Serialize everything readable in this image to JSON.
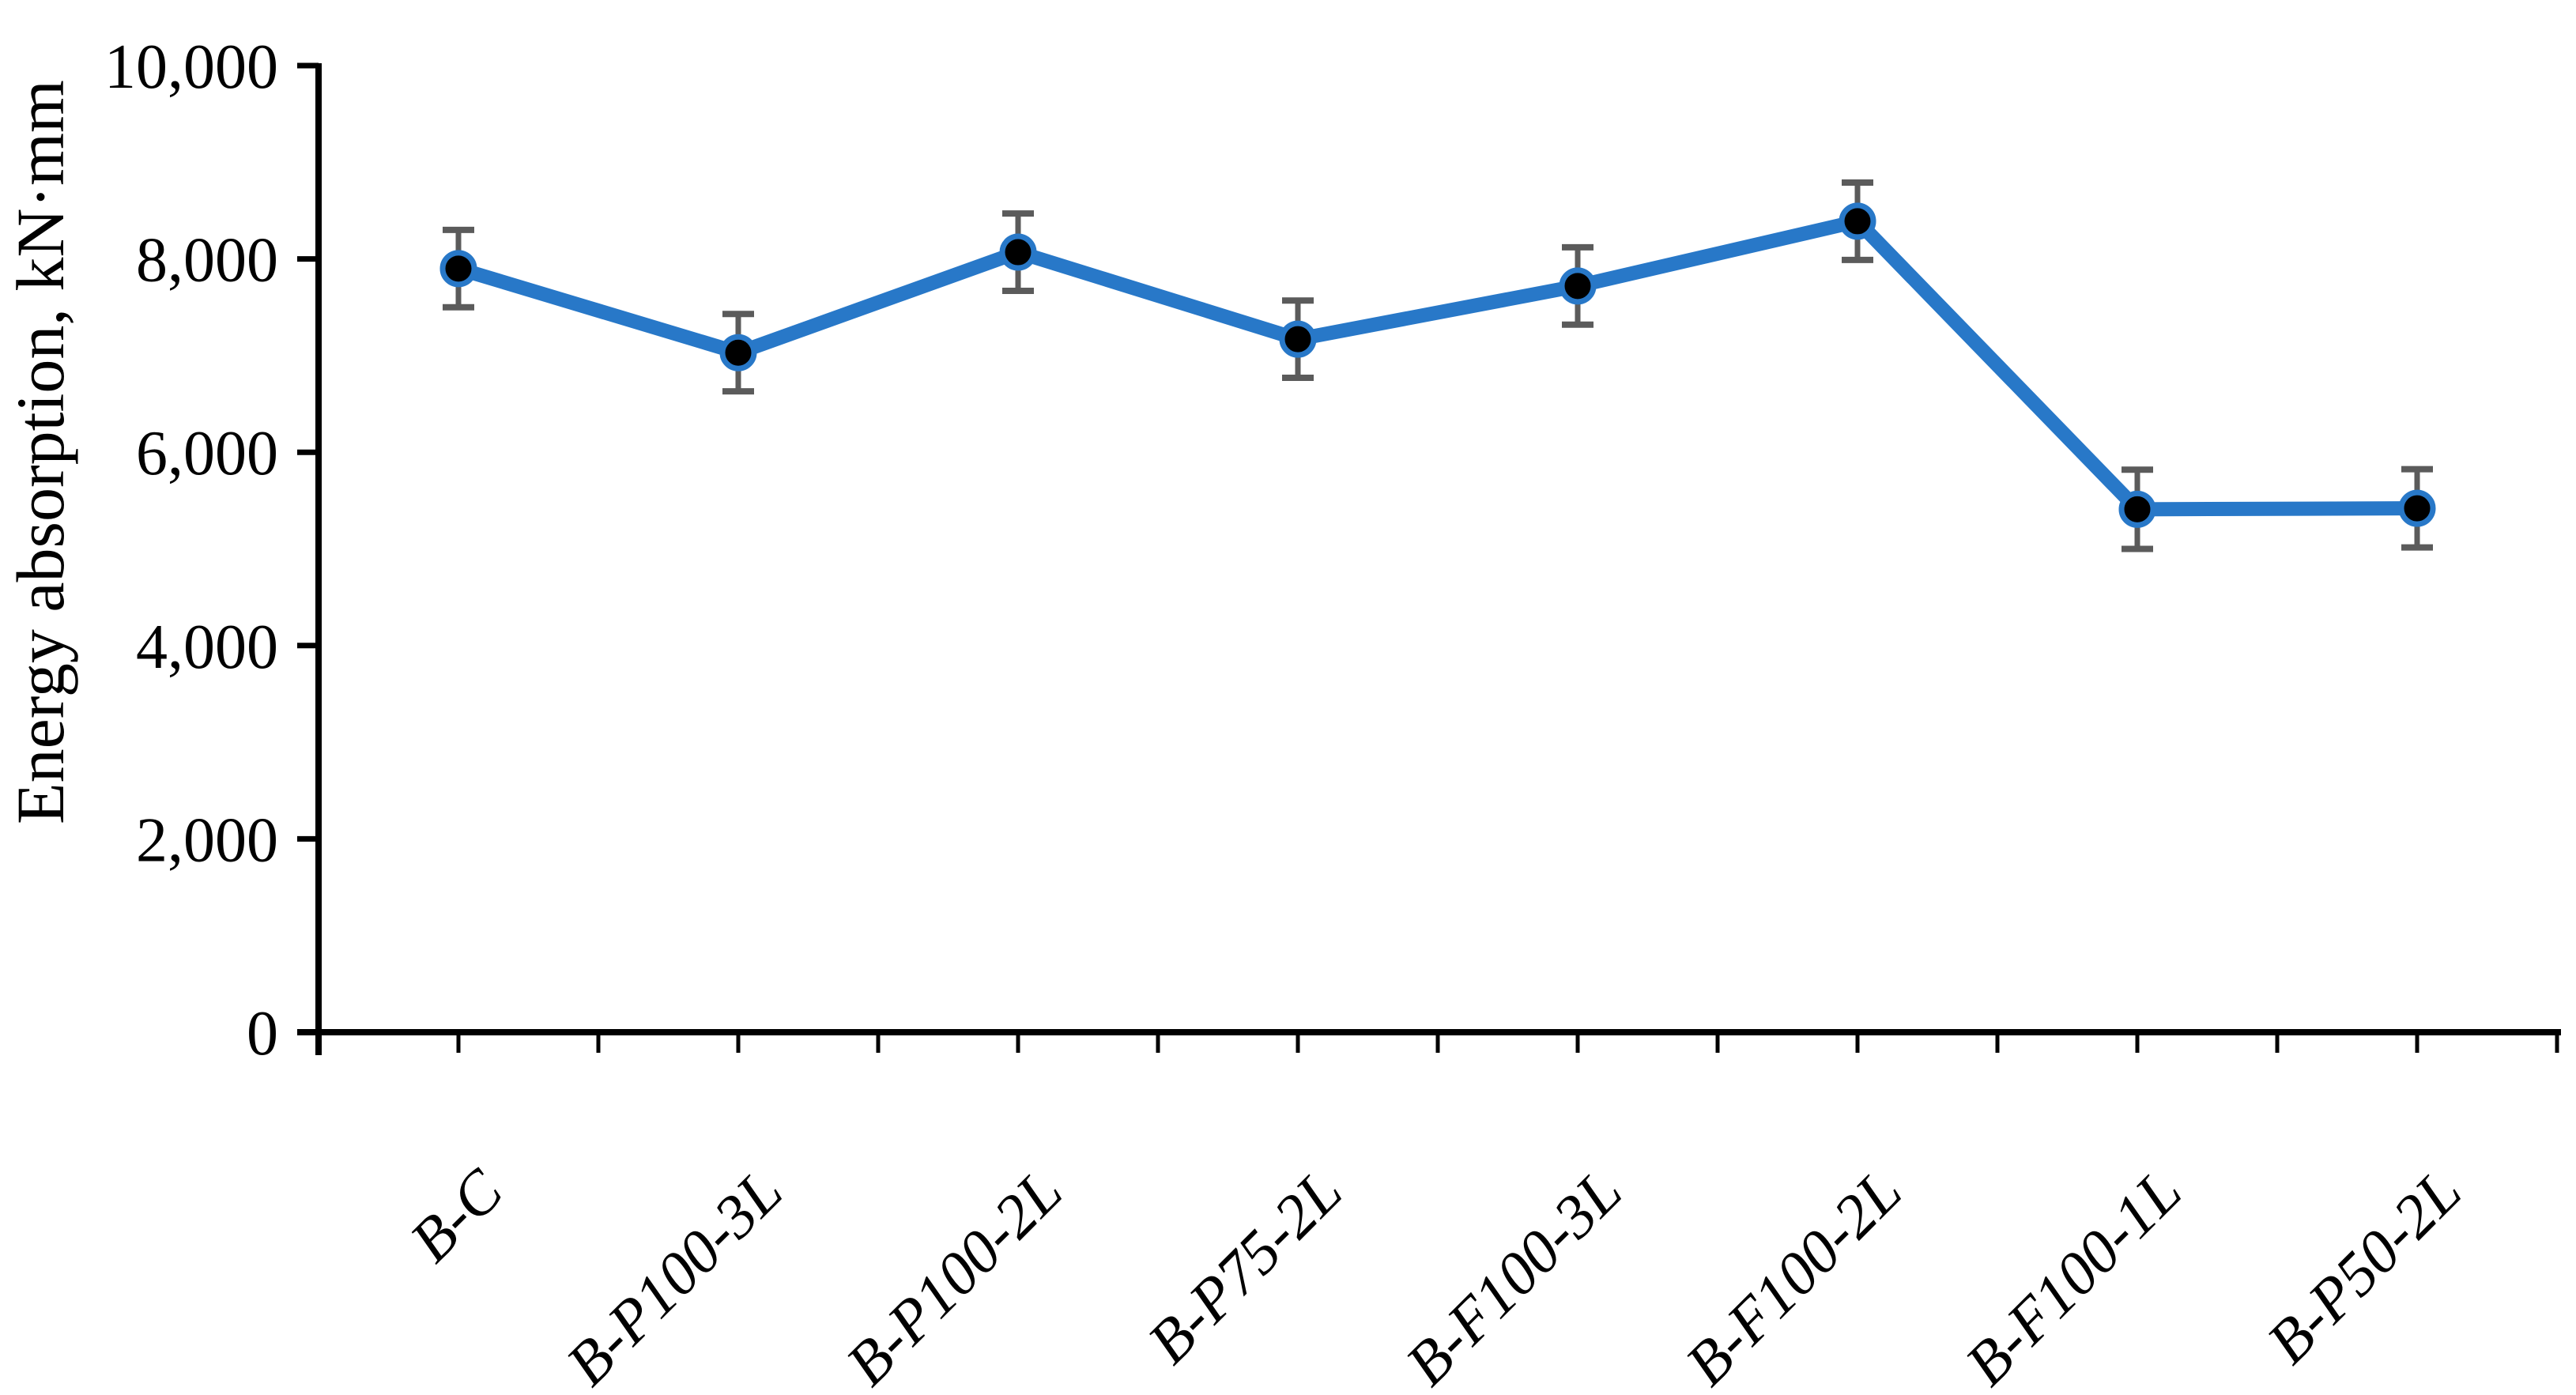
{
  "chart_data": {
    "type": "line",
    "title": "",
    "categories": [
      "B-C",
      "B-P100-3L",
      "B-P100-2L",
      "B-P75-2L",
      "B-F100-3L",
      "B-F100-2L",
      "B-F100-1L",
      "B-P50-2L"
    ],
    "series": [
      {
        "name": "Energy absorption",
        "values": [
          7900,
          7030,
          8070,
          7170,
          7720,
          8390,
          5410,
          5420
        ],
        "error_bars": [
          400,
          400,
          400,
          400,
          400,
          400,
          410,
          405
        ]
      }
    ],
    "xlabel": "",
    "ylabel": "Energy absorption, kN·mm",
    "ylim": [
      0,
      10000
    ],
    "ytick_step": 2000,
    "ytick_labels": [
      "0",
      "2,000",
      "4,000",
      "6,000",
      "8,000",
      "10,000"
    ],
    "grid": false,
    "legend_position": "none",
    "marker_style": "filled-circle-with-ring",
    "colors": {
      "line": "#2878c8",
      "marker_fill": "#000000",
      "marker_ring": "#2878c8",
      "error_bar": "#5b5b5b",
      "axis": "#000000",
      "text": "#000000",
      "background": "#ffffff"
    }
  }
}
